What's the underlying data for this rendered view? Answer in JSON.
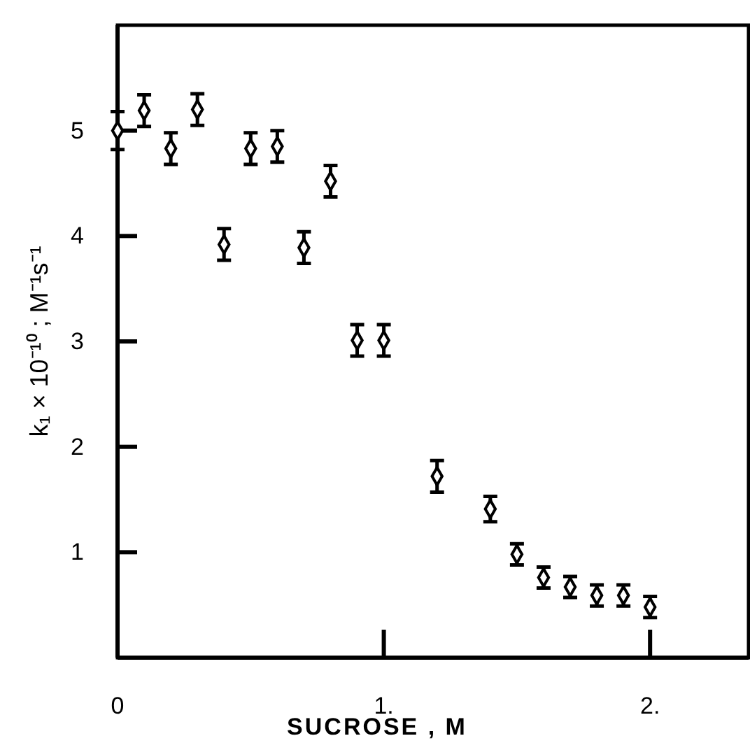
{
  "chart_data": {
    "type": "scatter",
    "xlabel": "SUCROSE , M",
    "ylabel": "k₁ × 10⁻¹⁰ ; M⁻¹s⁻¹",
    "x": [
      0,
      0.1,
      0.2,
      0.3,
      0.4,
      0.5,
      0.6,
      0.7,
      0.8,
      0.9,
      1.0,
      1.2,
      1.4,
      1.5,
      1.6,
      1.7,
      1.8,
      1.9,
      2.0
    ],
    "values": [
      5.0,
      5.19,
      4.83,
      5.2,
      3.92,
      4.83,
      4.85,
      3.89,
      4.52,
      3.01,
      3.01,
      1.72,
      1.41,
      0.98,
      0.76,
      0.67,
      0.59,
      0.59,
      0.48
    ],
    "errors": [
      0.18,
      0.15,
      0.15,
      0.15,
      0.15,
      0.15,
      0.15,
      0.15,
      0.15,
      0.15,
      0.15,
      0.15,
      0.12,
      0.1,
      0.1,
      0.1,
      0.1,
      0.1,
      0.1
    ],
    "color": "#000000",
    "marker": "diamond",
    "xlim": [
      0,
      2.37
    ],
    "xticks": [
      0,
      {
        "value": 1,
        "label": "1."
      },
      {
        "value": 2,
        "label": "2."
      }
    ],
    "ylim": [
      0,
      6
    ],
    "yticks": [
      1,
      2,
      3,
      4,
      5
    ],
    "grid": false
  }
}
